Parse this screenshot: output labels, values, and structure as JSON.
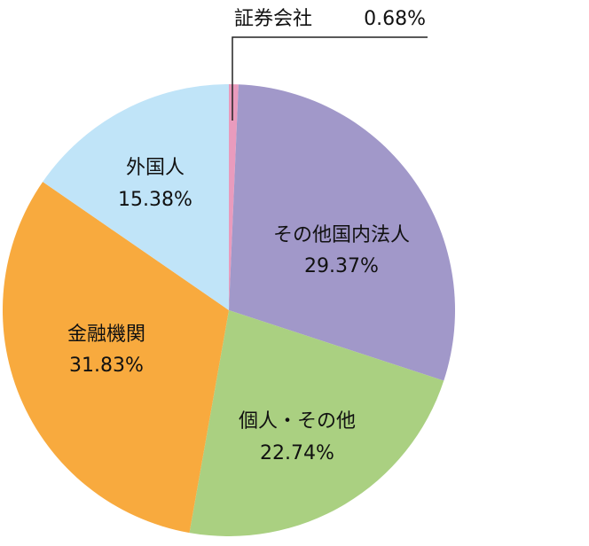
{
  "chart_data": {
    "type": "pie",
    "categories": [
      "証券会社",
      "その他国内法人",
      "個人・その他",
      "金融機関",
      "外国人"
    ],
    "values": [
      0.68,
      29.37,
      22.74,
      31.83,
      15.38
    ],
    "value_labels": [
      "0.68%",
      "29.37%",
      "22.74%",
      "31.83%",
      "15.38%"
    ],
    "colors": [
      "#e99bbd",
      "#a198c9",
      "#aad081",
      "#f8aa3e",
      "#c0e4f8"
    ]
  }
}
